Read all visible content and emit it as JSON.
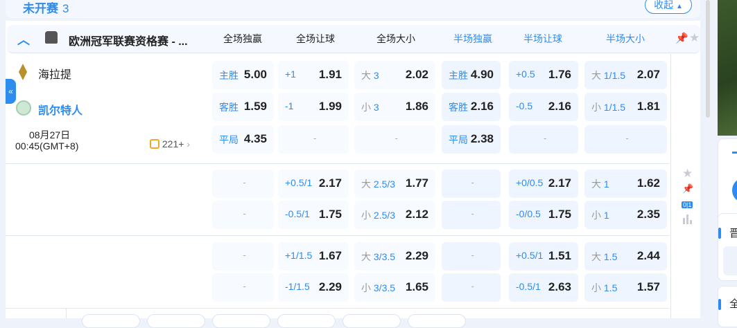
{
  "section": {
    "title": "未开赛",
    "count": "3",
    "collapse_label": "收起"
  },
  "league": {
    "name": "欧洲冠军联赛资格赛 - ...",
    "columns": [
      "全场独赢",
      "全场让球",
      "全场大小",
      "半场独赢",
      "半场让球",
      "半场大小"
    ]
  },
  "match": {
    "home": "海拉提",
    "away": "凯尔特人",
    "date": "08月27日",
    "time": "00:45(GMT+8)",
    "markets_count": "221+"
  },
  "rows": [
    [
      {
        "lbl": "主胜",
        "val": "5.00"
      },
      {
        "lbl": "+1",
        "val": "1.91"
      },
      {
        "pre": "大",
        "lbl": "3",
        "val": "2.02"
      },
      {
        "lbl": "主胜",
        "val": "4.90"
      },
      {
        "lbl": "+0.5",
        "val": "1.76"
      },
      {
        "pre": "大",
        "lbl": "1/1.5",
        "val": "2.07"
      }
    ],
    [
      {
        "lbl": "客胜",
        "val": "1.59"
      },
      {
        "lbl": "-1",
        "val": "1.99"
      },
      {
        "pre": "小",
        "lbl": "3",
        "val": "1.86"
      },
      {
        "lbl": "客胜",
        "val": "2.16"
      },
      {
        "lbl": "-0.5",
        "val": "2.16"
      },
      {
        "pre": "小",
        "lbl": "1/1.5",
        "val": "1.81"
      }
    ],
    [
      {
        "lbl": "平局",
        "val": "4.35"
      },
      {
        "dash": "-"
      },
      {
        "dash": "-"
      },
      {
        "lbl": "平局",
        "val": "2.38"
      },
      {
        "dash": "-"
      },
      {
        "dash": "-"
      }
    ],
    [
      {
        "dash": "-"
      },
      {
        "lbl": "+0.5/1",
        "val": "2.17"
      },
      {
        "pre": "大",
        "lbl": "2.5/3",
        "val": "1.77"
      },
      {
        "dash": "-"
      },
      {
        "lbl": "+0/0.5",
        "val": "2.17"
      },
      {
        "pre": "大",
        "lbl": "1",
        "val": "1.62"
      }
    ],
    [
      {
        "dash": "-"
      },
      {
        "lbl": "-0.5/1",
        "val": "1.75"
      },
      {
        "pre": "小",
        "lbl": "2.5/3",
        "val": "2.12"
      },
      {
        "dash": "-"
      },
      {
        "lbl": "-0/0.5",
        "val": "1.75"
      },
      {
        "pre": "小",
        "lbl": "1",
        "val": "2.35"
      }
    ],
    [
      {
        "dash": "-"
      },
      {
        "lbl": "+1/1.5",
        "val": "1.67"
      },
      {
        "pre": "大",
        "lbl": "3/3.5",
        "val": "2.29"
      },
      {
        "dash": "-"
      },
      {
        "lbl": "+0.5/1",
        "val": "1.51"
      },
      {
        "pre": "大",
        "lbl": "1.5",
        "val": "2.44"
      }
    ],
    [
      {
        "dash": "-"
      },
      {
        "lbl": "-1/1.5",
        "val": "2.29"
      },
      {
        "pre": "小",
        "lbl": "3/3.5",
        "val": "1.65"
      },
      {
        "dash": "-"
      },
      {
        "lbl": "-0.5/1",
        "val": "2.63"
      },
      {
        "pre": "小",
        "lbl": "1.5",
        "val": "1.57"
      }
    ]
  ],
  "side": {
    "score_badge": "0|1",
    "panel_chars": [
      "晋",
      "全"
    ]
  },
  "colors": {
    "accent": "#2d8cf0",
    "cell_full": "#f7fafe",
    "cell_half": "#eef5fe"
  }
}
